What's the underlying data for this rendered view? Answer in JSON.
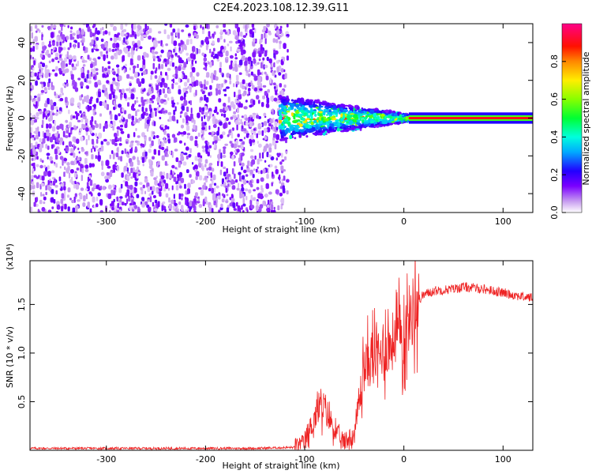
{
  "title": "C2E4.2023.108.12.39.G11",
  "chart_data": [
    {
      "type": "heatmap",
      "xlabel": "Height of straight line (km)",
      "ylabel": "Frequency (Hz)",
      "xlim": [
        -377,
        130
      ],
      "ylim": [
        -50,
        50
      ],
      "x_ticks": [
        -300,
        -200,
        -100,
        0,
        100
      ],
      "x_tick_labels": [
        "-300",
        "-200",
        "-100",
        "0",
        "100"
      ],
      "y_ticks": [
        -40,
        -20,
        0,
        20,
        40
      ],
      "y_tick_labels": [
        "-40",
        "-20",
        "0",
        "20",
        "40"
      ],
      "colorbar": {
        "label": "Normalized spectral amplitude",
        "range": [
          0,
          1
        ],
        "ticks": [
          0.0,
          0.2,
          0.4,
          0.6,
          0.8
        ],
        "tick_labels": [
          "0.0",
          "0.2",
          "0.4",
          "0.6",
          "0.8"
        ],
        "colormap": "rainbow (white→violet→blue→cyan→green→yellow→red→magenta)"
      },
      "regions": [
        {
          "name": "broadband noise",
          "x_range": [
            -377,
            -125
          ],
          "freq_range": [
            -50,
            50
          ],
          "amplitude": 0.05
        },
        {
          "name": "transition band",
          "x_range": [
            -125,
            5
          ],
          "freq_center": 0,
          "freq_halfwidth_start": 12,
          "freq_halfwidth_end": 2,
          "amplitude_range": [
            0.2,
            0.6
          ]
        },
        {
          "name": "narrow carrier",
          "x_range": [
            5,
            130
          ],
          "freq_center": 0,
          "freq_halfwidth": 1.5,
          "amplitude_core": 0.9
        }
      ]
    },
    {
      "type": "line",
      "xlabel": "Height of straight line (km)",
      "ylabel": "SNR (10 * v/v)",
      "y_multiplier": "(x10⁴)",
      "xlim": [
        -377,
        130
      ],
      "ylim": [
        0,
        1.95
      ],
      "x_ticks": [
        -300,
        -200,
        -100,
        0,
        100
      ],
      "x_tick_labels": [
        "-300",
        "-200",
        "-100",
        "0",
        "100"
      ],
      "y_ticks": [
        0.5,
        1.0,
        1.5
      ],
      "y_tick_labels": [
        "0.5",
        "1.0",
        "1.5"
      ],
      "series": [
        {
          "color": "#ee2222",
          "x": [
            -377,
            -150,
            -110,
            -100,
            -95,
            -90,
            -85,
            -80,
            -75,
            -70,
            -65,
            -60,
            -55,
            -50,
            -45,
            -40,
            -35,
            -30,
            -25,
            -20,
            -15,
            -10,
            -5,
            0,
            5,
            10,
            15,
            20,
            30,
            40,
            50,
            60,
            70,
            80,
            90,
            100,
            110,
            120,
            130
          ],
          "y": [
            0.02,
            0.02,
            0.03,
            0.08,
            0.2,
            0.35,
            0.42,
            0.45,
            0.32,
            0.22,
            0.12,
            0.1,
            0.12,
            0.18,
            0.5,
            0.85,
            0.9,
            1.0,
            0.95,
            1.1,
            1.05,
            1.15,
            1.2,
            1.2,
            1.35,
            1.45,
            1.55,
            1.6,
            1.64,
            1.65,
            1.66,
            1.68,
            1.67,
            1.66,
            1.64,
            1.62,
            1.6,
            1.58,
            1.57
          ]
        }
      ]
    }
  ]
}
